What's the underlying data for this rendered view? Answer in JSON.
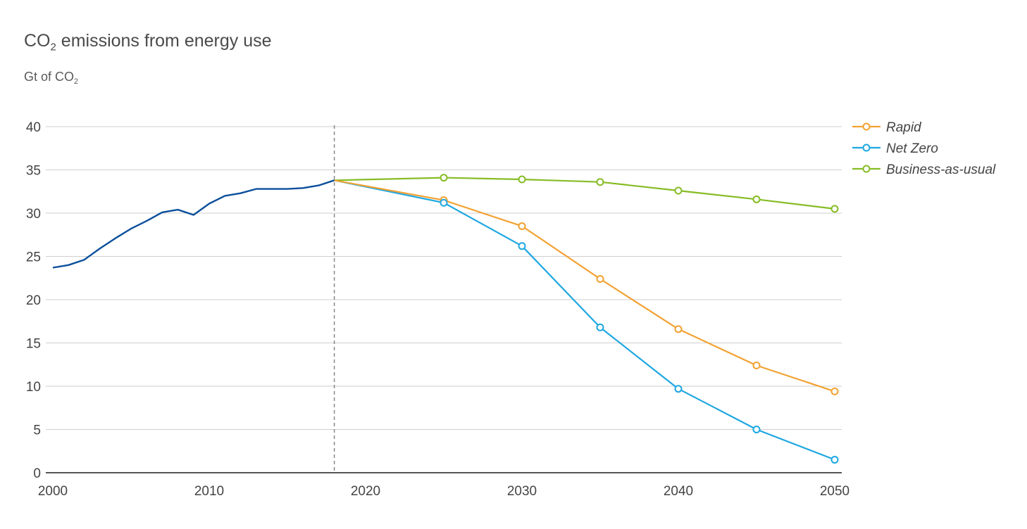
{
  "title": {
    "main": "CO",
    "sub": "2",
    "rest": " emissions from energy use"
  },
  "subtitle": {
    "main": "Gt of CO",
    "sub": "2"
  },
  "chart_data": {
    "type": "line",
    "xlim": [
      2000,
      2050
    ],
    "ylim": [
      0,
      40
    ],
    "xticks": [
      2000,
      2010,
      2020,
      2030,
      2040,
      2050
    ],
    "yticks": [
      0,
      5,
      10,
      15,
      20,
      25,
      30,
      35,
      40
    ],
    "grid": "horizontal",
    "divider_x": 2018,
    "legend_placement": "top-right",
    "history": {
      "color": "#0b4f9c",
      "x": [
        2000,
        2001,
        2002,
        2003,
        2004,
        2005,
        2006,
        2007,
        2008,
        2009,
        2010,
        2011,
        2012,
        2013,
        2014,
        2015,
        2016,
        2017,
        2018
      ],
      "y": [
        23.7,
        24.0,
        24.6,
        25.9,
        27.1,
        28.2,
        29.1,
        30.1,
        30.4,
        29.8,
        31.1,
        32.0,
        32.3,
        32.8,
        32.8,
        32.8,
        32.9,
        33.2,
        33.8
      ]
    },
    "series": [
      {
        "name": "Rapid",
        "color": "#f2a232",
        "x": [
          2018,
          2025,
          2030,
          2035,
          2040,
          2045,
          2050
        ],
        "y": [
          33.8,
          31.5,
          28.5,
          22.4,
          16.6,
          12.4,
          9.4
        ],
        "markers": [
          2025,
          2030,
          2035,
          2040,
          2045,
          2050
        ]
      },
      {
        "name": "Net Zero",
        "color": "#1ea7e1",
        "x": [
          2018,
          2025,
          2030,
          2035,
          2040,
          2045,
          2050
        ],
        "y": [
          33.8,
          31.2,
          26.2,
          16.8,
          9.7,
          5.0,
          1.5
        ],
        "markers": [
          2025,
          2030,
          2035,
          2040,
          2045,
          2050
        ]
      },
      {
        "name": "Business-as-usual",
        "color": "#86bc25",
        "x": [
          2018,
          2025,
          2030,
          2035,
          2040,
          2045,
          2050
        ],
        "y": [
          33.8,
          34.1,
          33.9,
          33.6,
          32.6,
          31.6,
          30.5
        ],
        "markers": [
          2025,
          2030,
          2035,
          2040,
          2045,
          2050
        ]
      }
    ]
  }
}
